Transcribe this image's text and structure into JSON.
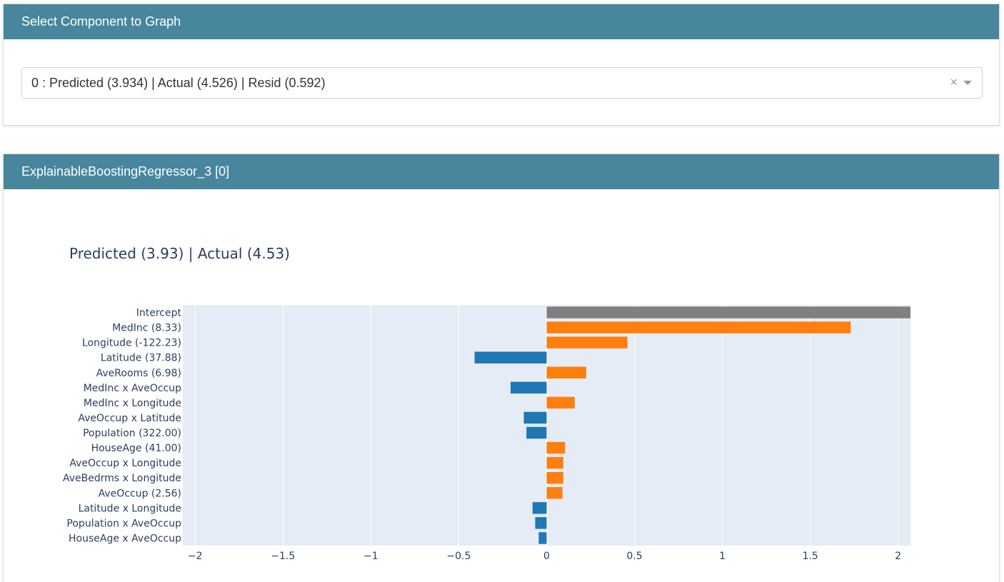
{
  "select_panel": {
    "header": "Select Component to Graph",
    "selected_value": "0 : Predicted (3.934) | Actual (4.526) | Resid (0.592)",
    "clear_glyph": "×"
  },
  "graph_panel": {
    "header": "ExplainableBoostingRegressor_3 [0]"
  },
  "colors": {
    "header_bg": "#47869d",
    "positive": "#ff7f0e",
    "negative": "#1f77b4",
    "intercept": "#808080",
    "plot_bg": "#e5ecf6"
  },
  "chart_data": {
    "type": "bar",
    "orientation": "horizontal",
    "title": "Predicted (3.93) | Actual (4.53)",
    "xlabel": "",
    "ylabel": "",
    "xlim": [
      -2.07,
      2.07
    ],
    "x_ticks": [
      -2,
      -1.5,
      -1,
      -0.5,
      0,
      0.5,
      1,
      1.5,
      2
    ],
    "x_tick_labels": [
      "−2",
      "−1.5",
      "−1",
      "−0.5",
      "0",
      "0.5",
      "1",
      "1.5",
      "2"
    ],
    "grid": true,
    "categories": [
      "Intercept",
      "MedInc (8.33)",
      "Longitude (-122.23)",
      "Latitude (37.88)",
      "AveRooms (6.98)",
      "MedInc x AveOccup",
      "MedInc x Longitude",
      "AveOccup x Latitude",
      "Population (322.00)",
      "HouseAge (41.00)",
      "AveOccup x Longitude",
      "AveBedrms x Longitude",
      "AveOccup (2.56)",
      "Latitude x Longitude",
      "Population x AveOccup",
      "HouseAge x AveOccup"
    ],
    "values": [
      2.07,
      1.73,
      0.46,
      -0.41,
      0.225,
      -0.205,
      0.16,
      -0.13,
      -0.115,
      0.105,
      0.095,
      0.095,
      0.09,
      -0.08,
      -0.065,
      -0.045
    ]
  }
}
